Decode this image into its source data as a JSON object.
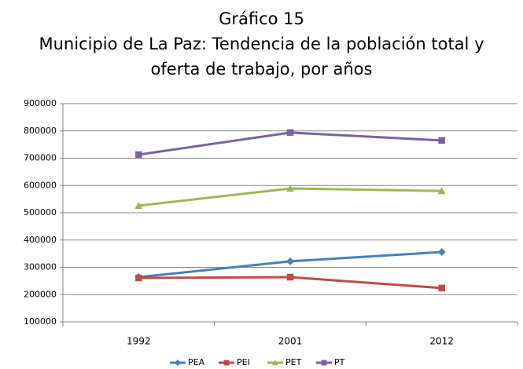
{
  "chart_data": {
    "type": "line",
    "title": "Gráfico 15",
    "subtitle": "Municipio de La Paz: Tendencia de la población total y oferta de trabajo, por años",
    "categories": [
      "1992",
      "2001",
      "2012"
    ],
    "series": [
      {
        "name": "PEA",
        "color": "#4a7ebb",
        "marker": "diamond",
        "values": [
          264000,
          322000,
          356000
        ]
      },
      {
        "name": "PEI",
        "color": "#be4b48",
        "marker": "square",
        "values": [
          261000,
          264000,
          224000
        ]
      },
      {
        "name": "PET",
        "color": "#98b954",
        "marker": "triangle",
        "values": [
          526000,
          589000,
          580000
        ]
      },
      {
        "name": "PT",
        "color": "#7d60a0",
        "marker": "square",
        "values": [
          713000,
          794000,
          765000
        ]
      }
    ],
    "ylim": [
      100000,
      900000
    ],
    "yticks": [
      100000,
      200000,
      300000,
      400000,
      500000,
      600000,
      700000,
      800000,
      900000
    ],
    "grid": true,
    "legend": "bottom"
  }
}
